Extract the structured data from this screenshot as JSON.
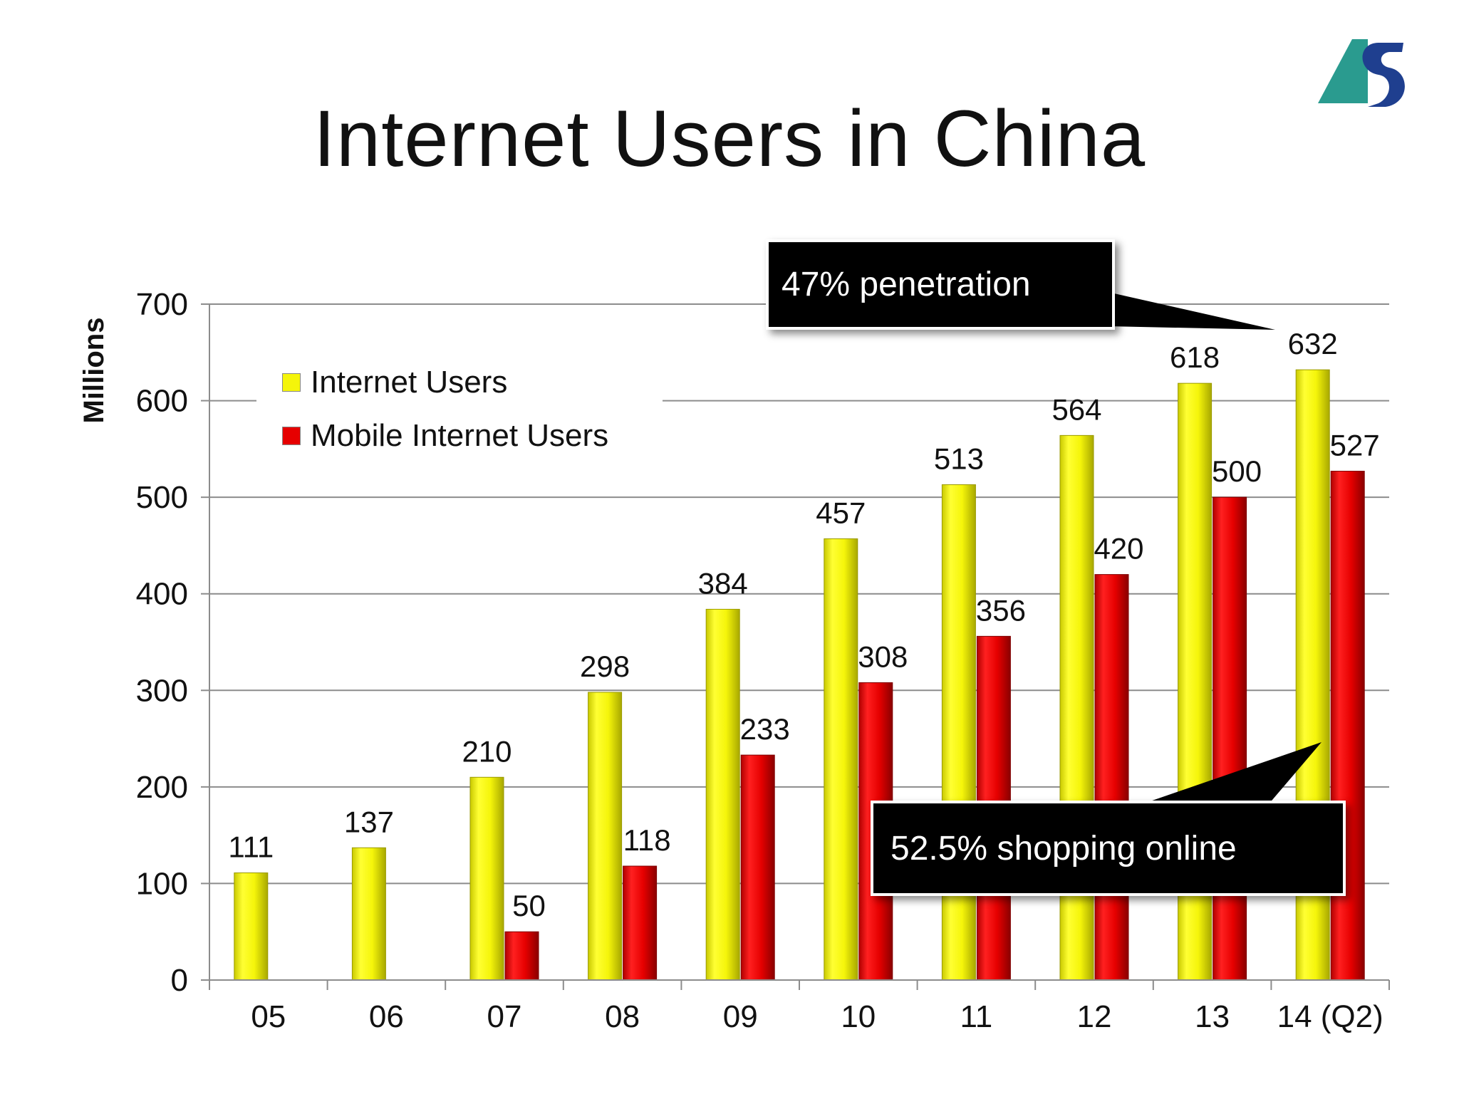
{
  "slide": {
    "title": "Internet Users in China",
    "callout_penetration": "47% penetration",
    "callout_shopping": "52.5% shopping online"
  },
  "colors": {
    "internet_users": "#f5f50a",
    "mobile_internet_users": "#e60000",
    "grid": "#8c8c8c",
    "logo_teal": "#2a9b8f",
    "logo_blue": "#1f3f8f"
  },
  "chart_data": {
    "type": "bar",
    "title": "Internet Users in China",
    "xlabel": "",
    "ylabel": "Millions",
    "ylim": [
      0,
      700
    ],
    "yticks": [
      0,
      100,
      200,
      300,
      400,
      500,
      600,
      700
    ],
    "ytick_labels": [
      "0",
      "100",
      "200",
      "300",
      "400",
      "500",
      "600",
      "700"
    ],
    "grid": true,
    "legend": "upper-left",
    "categories": [
      "05",
      "06",
      "07",
      "08",
      "09",
      "10",
      "11",
      "12",
      "13",
      "14 (Q2)"
    ],
    "series": [
      {
        "name": "Internet Users",
        "values": [
          111,
          137,
          210,
          298,
          384,
          457,
          513,
          564,
          618,
          632
        ],
        "labels": [
          "111",
          "137",
          "210",
          "298",
          "384",
          "457",
          "513",
          "564",
          "618",
          "632"
        ]
      },
      {
        "name": "Mobile Internet Users",
        "values": [
          null,
          null,
          50,
          118,
          233,
          308,
          356,
          420,
          500,
          527
        ],
        "labels": [
          "",
          "",
          "50",
          "118",
          "233",
          "308",
          "356",
          "420",
          "500",
          "527"
        ]
      }
    ]
  }
}
